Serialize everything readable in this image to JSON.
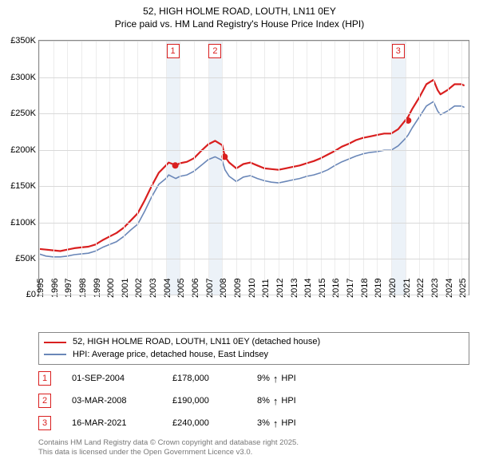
{
  "title": {
    "line1": "52, HIGH HOLME ROAD, LOUTH, LN11 0EY",
    "line2": "Price paid vs. HM Land Registry's House Price Index (HPI)"
  },
  "chart": {
    "type": "line",
    "background_color": "#ffffff",
    "plot_border_color": "#888888",
    "grid_color": "#d9d9d9",
    "grid_color_v": "#ececec",
    "band_color": "#dde7f2",
    "xlim": [
      1995,
      2025.5
    ],
    "ylim": [
      0,
      350
    ],
    "y_ticks": [
      0,
      50,
      100,
      150,
      200,
      250,
      300,
      350
    ],
    "y_tick_labels": [
      "£0",
      "£50K",
      "£100K",
      "£150K",
      "£200K",
      "£250K",
      "£300K",
      "£350K"
    ],
    "x_ticks": [
      1995,
      1996,
      1997,
      1998,
      1999,
      2000,
      2001,
      2002,
      2003,
      2004,
      2005,
      2006,
      2007,
      2008,
      2009,
      2010,
      2011,
      2012,
      2013,
      2014,
      2015,
      2016,
      2017,
      2018,
      2019,
      2020,
      2021,
      2022,
      2023,
      2024,
      2025
    ],
    "bands": [
      [
        2004,
        2005
      ],
      [
        2007,
        2008
      ],
      [
        2020,
        2021
      ]
    ],
    "label_fontsize": 11,
    "tick_fontsize": 11,
    "series": [
      {
        "name": "52, HIGH HOLME ROAD, LOUTH, LN11 0EY (detached house)",
        "color": "#d91f1f",
        "line_width": 2.2,
        "data": [
          [
            1995,
            63
          ],
          [
            1995.5,
            62
          ],
          [
            1996,
            61
          ],
          [
            1996.5,
            60
          ],
          [
            1997,
            62
          ],
          [
            1997.5,
            64
          ],
          [
            1998,
            65
          ],
          [
            1998.5,
            66
          ],
          [
            1999,
            69
          ],
          [
            1999.5,
            75
          ],
          [
            2000,
            80
          ],
          [
            2000.5,
            85
          ],
          [
            2001,
            92
          ],
          [
            2001.5,
            102
          ],
          [
            2002,
            112
          ],
          [
            2002.5,
            130
          ],
          [
            2003,
            150
          ],
          [
            2003.5,
            168
          ],
          [
            2004,
            178
          ],
          [
            2004.2,
            182
          ],
          [
            2004.5,
            180
          ],
          [
            2004.7,
            178
          ],
          [
            2005,
            181
          ],
          [
            2005.5,
            183
          ],
          [
            2006,
            188
          ],
          [
            2006.5,
            198
          ],
          [
            2007,
            207
          ],
          [
            2007.5,
            212
          ],
          [
            2008,
            206
          ],
          [
            2008.2,
            190
          ],
          [
            2008.5,
            182
          ],
          [
            2009,
            174
          ],
          [
            2009.5,
            180
          ],
          [
            2010,
            182
          ],
          [
            2010.5,
            178
          ],
          [
            2011,
            174
          ],
          [
            2011.5,
            173
          ],
          [
            2012,
            172
          ],
          [
            2012.5,
            174
          ],
          [
            2013,
            176
          ],
          [
            2013.5,
            178
          ],
          [
            2014,
            181
          ],
          [
            2014.5,
            184
          ],
          [
            2015,
            188
          ],
          [
            2015.5,
            193
          ],
          [
            2016,
            198
          ],
          [
            2016.5,
            204
          ],
          [
            2017,
            208
          ],
          [
            2017.5,
            213
          ],
          [
            2018,
            216
          ],
          [
            2018.5,
            218
          ],
          [
            2019,
            220
          ],
          [
            2019.5,
            222
          ],
          [
            2020,
            222
          ],
          [
            2020.5,
            228
          ],
          [
            2021,
            240
          ],
          [
            2021.2,
            245
          ],
          [
            2021.5,
            256
          ],
          [
            2022,
            272
          ],
          [
            2022.5,
            290
          ],
          [
            2023,
            296
          ],
          [
            2023.3,
            282
          ],
          [
            2023.5,
            276
          ],
          [
            2024,
            282
          ],
          [
            2024.5,
            290
          ],
          [
            2025,
            290
          ],
          [
            2025.2,
            288
          ]
        ]
      },
      {
        "name": "HPI: Average price, detached house, East Lindsey",
        "color": "#6a87b8",
        "line_width": 1.6,
        "data": [
          [
            1995,
            56
          ],
          [
            1995.5,
            53
          ],
          [
            1996,
            52
          ],
          [
            1996.5,
            52
          ],
          [
            1997,
            53
          ],
          [
            1997.5,
            55
          ],
          [
            1998,
            56
          ],
          [
            1998.5,
            57
          ],
          [
            1999,
            60
          ],
          [
            1999.5,
            65
          ],
          [
            2000,
            69
          ],
          [
            2000.5,
            73
          ],
          [
            2001,
            80
          ],
          [
            2001.5,
            89
          ],
          [
            2002,
            97
          ],
          [
            2002.5,
            115
          ],
          [
            2003,
            135
          ],
          [
            2003.5,
            152
          ],
          [
            2004,
            160
          ],
          [
            2004.2,
            165
          ],
          [
            2004.5,
            162
          ],
          [
            2004.7,
            160
          ],
          [
            2005,
            163
          ],
          [
            2005.5,
            165
          ],
          [
            2006,
            170
          ],
          [
            2006.5,
            178
          ],
          [
            2007,
            186
          ],
          [
            2007.5,
            190
          ],
          [
            2008,
            185
          ],
          [
            2008.2,
            172
          ],
          [
            2008.5,
            163
          ],
          [
            2009,
            156
          ],
          [
            2009.5,
            162
          ],
          [
            2010,
            164
          ],
          [
            2010.5,
            160
          ],
          [
            2011,
            157
          ],
          [
            2011.5,
            155
          ],
          [
            2012,
            154
          ],
          [
            2012.5,
            156
          ],
          [
            2013,
            158
          ],
          [
            2013.5,
            160
          ],
          [
            2014,
            163
          ],
          [
            2014.5,
            165
          ],
          [
            2015,
            168
          ],
          [
            2015.5,
            172
          ],
          [
            2016,
            178
          ],
          [
            2016.5,
            183
          ],
          [
            2017,
            187
          ],
          [
            2017.5,
            191
          ],
          [
            2018,
            194
          ],
          [
            2018.5,
            196
          ],
          [
            2019,
            197
          ],
          [
            2019.5,
            199
          ],
          [
            2020,
            199
          ],
          [
            2020.5,
            205
          ],
          [
            2021,
            215
          ],
          [
            2021.2,
            220
          ],
          [
            2021.5,
            230
          ],
          [
            2022,
            245
          ],
          [
            2022.5,
            260
          ],
          [
            2023,
            266
          ],
          [
            2023.3,
            253
          ],
          [
            2023.5,
            248
          ],
          [
            2024,
            253
          ],
          [
            2024.5,
            260
          ],
          [
            2025,
            260
          ],
          [
            2025.2,
            258
          ]
        ]
      }
    ],
    "event_markers": [
      {
        "n": "1",
        "x": 2004.5,
        "y_offset": -20,
        "color": "#d91f1f"
      },
      {
        "n": "2",
        "x": 2007.5,
        "y_offset": -20,
        "color": "#d91f1f"
      },
      {
        "n": "3",
        "x": 2020.5,
        "y_offset": -20,
        "color": "#d91f1f"
      }
    ],
    "series_markers": [
      {
        "x": 2004.67,
        "y": 178,
        "color": "#d91f1f"
      },
      {
        "x": 2008.17,
        "y": 190,
        "color": "#d91f1f"
      },
      {
        "x": 2021.21,
        "y": 240,
        "color": "#d91f1f"
      }
    ]
  },
  "legend": {
    "border_color": "#888888",
    "items": [
      {
        "color": "#d91f1f",
        "label": "52, HIGH HOLME ROAD, LOUTH, LN11 0EY (detached house)"
      },
      {
        "color": "#6a87b8",
        "label": "HPI: Average price, detached house, East Lindsey"
      }
    ]
  },
  "events": [
    {
      "n": "1",
      "date": "01-SEP-2004",
      "price": "£178,000",
      "pct": "9%",
      "dir": "↑",
      "note": "HPI",
      "color": "#d91f1f"
    },
    {
      "n": "2",
      "date": "03-MAR-2008",
      "price": "£190,000",
      "pct": "8%",
      "dir": "↑",
      "note": "HPI",
      "color": "#d91f1f"
    },
    {
      "n": "3",
      "date": "16-MAR-2021",
      "price": "£240,000",
      "pct": "3%",
      "dir": "↑",
      "note": "HPI",
      "color": "#d91f1f"
    }
  ],
  "attribution": {
    "line1": "Contains HM Land Registry data © Crown copyright and database right 2025.",
    "line2": "This data is licensed under the Open Government Licence v3.0.",
    "color": "#777777"
  }
}
